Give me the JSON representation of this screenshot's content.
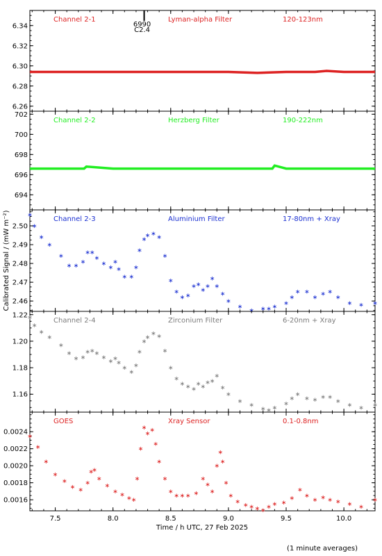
{
  "x_axis": {
    "label": "Time / h UTC, 27 Feb 2025",
    "range": [
      7.28,
      10.27
    ],
    "ticks": [
      7.5,
      8.0,
      8.5,
      9.0,
      9.5,
      10.0
    ],
    "tick_labels": [
      "7.5",
      "8.0",
      "8.5",
      "9.0",
      "9.5",
      "10.0"
    ]
  },
  "y_axis_label": "Calibrated Signal / (mW m⁻²)",
  "footnote": "(1 minute averages)",
  "marker": {
    "x": 8.27,
    "label1": "6990",
    "label2": "C2.4"
  },
  "chart_data": [
    {
      "type": "line",
      "name": "Channel 2-1",
      "filter": "Lyman-alpha Filter",
      "band": "120-123nm",
      "color": "#dd2222",
      "ylim": [
        6.255,
        6.355
      ],
      "yticks": [
        6.26,
        6.28,
        6.3,
        6.32,
        6.34
      ],
      "ytick_labels": [
        "6.26",
        "6.28",
        "6.30",
        "6.32",
        "6.34"
      ],
      "x": [
        7.28,
        7.5,
        7.75,
        8.0,
        8.25,
        8.5,
        8.75,
        9.0,
        9.25,
        9.5,
        9.75,
        9.85,
        10.0,
        10.27
      ],
      "y": [
        6.294,
        6.294,
        6.294,
        6.294,
        6.294,
        6.294,
        6.294,
        6.294,
        6.293,
        6.294,
        6.294,
        6.295,
        6.294,
        6.294
      ]
    },
    {
      "type": "line",
      "name": "Channel 2-2",
      "filter": "Herzberg Filter",
      "band": "190-222nm",
      "color": "#22ee22",
      "ylim": [
        692.5,
        702.3
      ],
      "yticks": [
        694,
        696,
        698,
        700,
        702
      ],
      "ytick_labels": [
        "694",
        "696",
        "698",
        "700",
        "702"
      ],
      "x": [
        7.28,
        7.5,
        7.75,
        7.77,
        8.0,
        8.5,
        9.0,
        9.38,
        9.4,
        9.5,
        10.0,
        10.27
      ],
      "y": [
        696.6,
        696.6,
        696.6,
        696.8,
        696.6,
        696.6,
        696.6,
        696.6,
        696.9,
        696.6,
        696.6,
        696.6
      ]
    },
    {
      "type": "scatter",
      "name": "Channel 2-3",
      "filter": "Aluminium Filter",
      "band": "17-80nm + Xray",
      "color": "#1a2fd1",
      "ylim": [
        2.4545,
        2.5085
      ],
      "yticks": [
        2.46,
        2.47,
        2.48,
        2.49,
        2.5
      ],
      "ytick_labels": [
        "2.46",
        "2.47",
        "2.48",
        "2.49",
        "2.50"
      ],
      "x": [
        7.28,
        7.32,
        7.38,
        7.45,
        7.55,
        7.62,
        7.68,
        7.74,
        7.78,
        7.82,
        7.86,
        7.92,
        7.98,
        8.02,
        8.05,
        8.1,
        8.16,
        8.2,
        8.23,
        8.27,
        8.3,
        8.35,
        8.4,
        8.45,
        8.5,
        8.55,
        8.6,
        8.65,
        8.7,
        8.74,
        8.78,
        8.82,
        8.86,
        8.9,
        8.95,
        9.0,
        9.1,
        9.2,
        9.3,
        9.35,
        9.4,
        9.5,
        9.55,
        9.6,
        9.68,
        9.75,
        9.82,
        9.88,
        9.95,
        10.05,
        10.15,
        10.27
      ],
      "y": [
        2.506,
        2.5,
        2.494,
        2.49,
        2.484,
        2.479,
        2.479,
        2.481,
        2.486,
        2.486,
        2.483,
        2.48,
        2.478,
        2.481,
        2.477,
        2.473,
        2.473,
        2.478,
        2.487,
        2.493,
        2.495,
        2.496,
        2.494,
        2.484,
        2.471,
        2.465,
        2.462,
        2.463,
        2.468,
        2.469,
        2.466,
        2.468,
        2.472,
        2.468,
        2.464,
        2.46,
        2.457,
        2.455,
        2.456,
        2.456,
        2.457,
        2.459,
        2.462,
        2.465,
        2.465,
        2.462,
        2.464,
        2.465,
        2.462,
        2.459,
        2.458,
        2.459
      ]
    },
    {
      "type": "scatter",
      "name": "Channel 2-4",
      "filter": "Zirconium Filter",
      "band": "6-20nm + Xray",
      "color": "#7a7a7a",
      "ylim": [
        1.1465,
        1.2225
      ],
      "yticks": [
        1.16,
        1.18,
        1.2,
        1.22
      ],
      "ytick_labels": [
        "1.16",
        "1.18",
        "1.20",
        "1.22"
      ],
      "x": [
        7.28,
        7.32,
        7.38,
        7.45,
        7.55,
        7.62,
        7.68,
        7.74,
        7.78,
        7.82,
        7.86,
        7.92,
        7.98,
        8.02,
        8.05,
        8.1,
        8.16,
        8.2,
        8.23,
        8.27,
        8.3,
        8.35,
        8.4,
        8.45,
        8.5,
        8.55,
        8.6,
        8.65,
        8.7,
        8.74,
        8.78,
        8.82,
        8.86,
        8.9,
        8.95,
        9.0,
        9.1,
        9.2,
        9.3,
        9.35,
        9.4,
        9.5,
        9.55,
        9.6,
        9.68,
        9.75,
        9.82,
        9.88,
        9.95,
        10.05,
        10.15,
        10.27
      ],
      "y": [
        1.218,
        1.212,
        1.207,
        1.203,
        1.197,
        1.191,
        1.187,
        1.188,
        1.192,
        1.193,
        1.191,
        1.188,
        1.185,
        1.187,
        1.184,
        1.18,
        1.177,
        1.182,
        1.192,
        1.2,
        1.203,
        1.206,
        1.204,
        1.193,
        1.18,
        1.172,
        1.168,
        1.166,
        1.164,
        1.168,
        1.166,
        1.169,
        1.17,
        1.174,
        1.165,
        1.16,
        1.155,
        1.152,
        1.149,
        1.148,
        1.15,
        1.153,
        1.157,
        1.16,
        1.157,
        1.156,
        1.158,
        1.158,
        1.155,
        1.152,
        1.15,
        1.152
      ]
    },
    {
      "type": "scatter",
      "name": "GOES",
      "filter": "Xray Sensor",
      "band": "0.1-0.8nm",
      "color": "#dd2222",
      "ylim": [
        0.00147,
        0.00263
      ],
      "yticks": [
        0.0016,
        0.0018,
        0.002,
        0.0022,
        0.0024
      ],
      "ytick_labels": [
        "0.0016",
        "0.0018",
        "0.0020",
        "0.0022",
        "0.0024"
      ],
      "x": [
        7.28,
        7.35,
        7.42,
        7.5,
        7.58,
        7.65,
        7.72,
        7.78,
        7.81,
        7.84,
        7.88,
        7.95,
        8.02,
        8.08,
        8.14,
        8.18,
        8.21,
        8.24,
        8.27,
        8.3,
        8.34,
        8.37,
        8.4,
        8.45,
        8.5,
        8.55,
        8.6,
        8.65,
        8.72,
        8.78,
        8.82,
        8.86,
        8.9,
        8.93,
        8.95,
        8.98,
        9.02,
        9.08,
        9.15,
        9.2,
        9.25,
        9.3,
        9.35,
        9.4,
        9.48,
        9.55,
        9.62,
        9.68,
        9.75,
        9.82,
        9.88,
        9.95,
        10.05,
        10.15,
        10.27
      ],
      "y": [
        0.00235,
        0.00222,
        0.00205,
        0.0019,
        0.00182,
        0.00175,
        0.00172,
        0.0018,
        0.00193,
        0.00195,
        0.00185,
        0.00177,
        0.0017,
        0.00166,
        0.00162,
        0.0016,
        0.00185,
        0.0022,
        0.00245,
        0.00238,
        0.00242,
        0.00226,
        0.00205,
        0.00185,
        0.0017,
        0.00165,
        0.00165,
        0.00165,
        0.00168,
        0.00185,
        0.00178,
        0.0017,
        0.002,
        0.00216,
        0.00205,
        0.0018,
        0.00165,
        0.00158,
        0.00154,
        0.00152,
        0.0015,
        0.00148,
        0.00152,
        0.00155,
        0.00157,
        0.00162,
        0.00172,
        0.00165,
        0.0016,
        0.00163,
        0.0016,
        0.00158,
        0.00155,
        0.00152,
        0.0016
      ]
    }
  ]
}
